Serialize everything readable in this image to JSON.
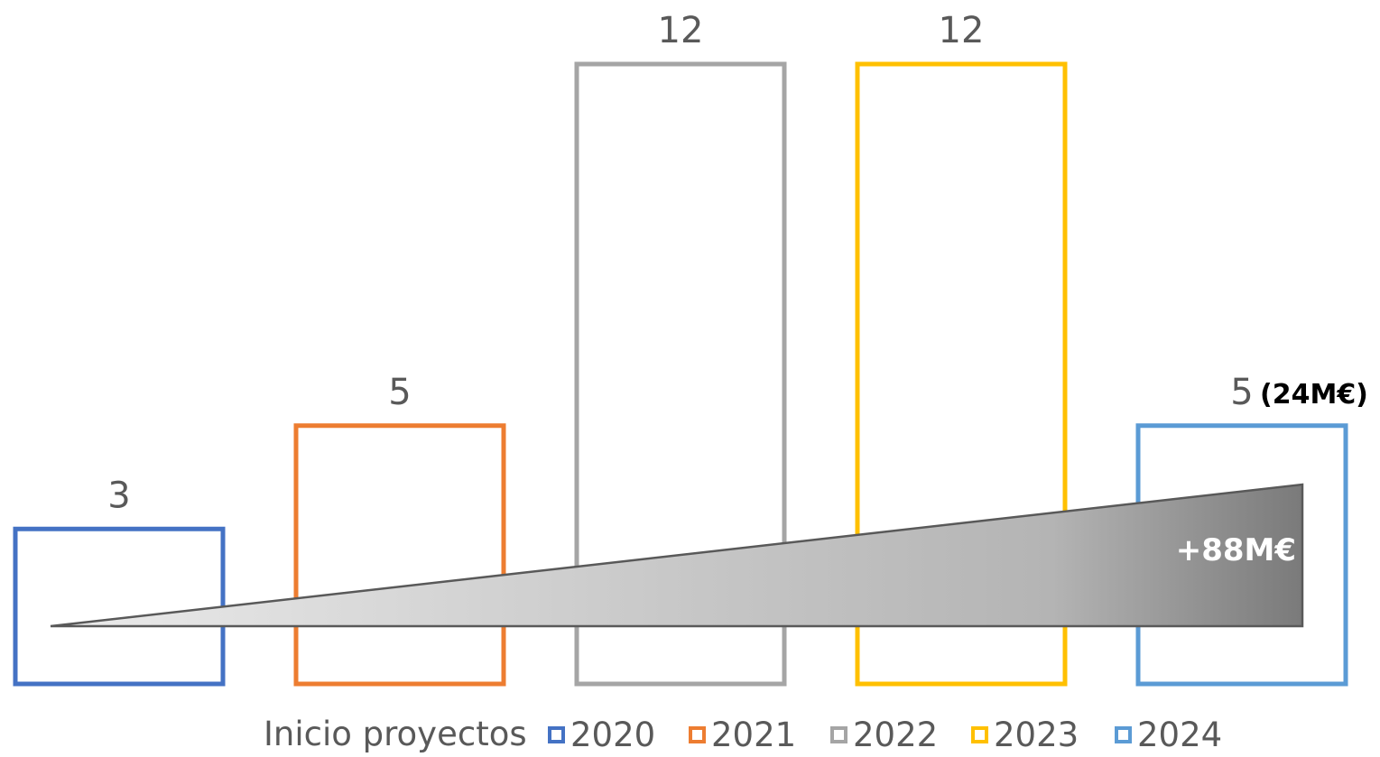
{
  "chart_data": {
    "type": "bar",
    "categories": [
      "2020",
      "2021",
      "2022",
      "2023",
      "2024"
    ],
    "values": [
      3,
      5,
      12,
      12,
      5
    ],
    "value_labels": [
      "3",
      "5",
      "12",
      "12",
      "5"
    ],
    "colors": [
      "#4472C4",
      "#ED7D31",
      "#A5A5A5",
      "#FFC000",
      "#5B9BD5"
    ],
    "bar_style": "outline",
    "ylim": [
      0,
      12
    ],
    "grid": false,
    "legend": {
      "title": "Inicio proyectos",
      "placement": "bottom",
      "entries": [
        "2020",
        "2021",
        "2022",
        "2023",
        "2024"
      ]
    },
    "annotations": {
      "last_bar_extra": "(24M€)",
      "wedge_label": "+88M€"
    }
  }
}
